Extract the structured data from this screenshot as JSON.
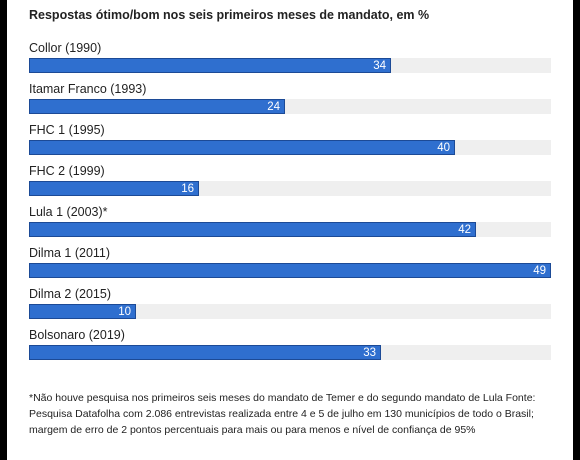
{
  "chart_data": {
    "type": "bar",
    "orientation": "horizontal",
    "title": "Respostas ótimo/bom nos seis primeiros meses de mandato, em %",
    "categories": [
      "Collor (1990)",
      "Itamar Franco (1993)",
      "FHC 1 (1995)",
      "FHC 2 (1999)",
      "Lula 1 (2003)*",
      "Dilma 1 (2011)",
      "Dilma 2 (2015)",
      "Bolsonaro (2019)"
    ],
    "values": [
      34,
      24,
      40,
      16,
      42,
      49,
      10,
      33
    ],
    "xlim": [
      0,
      49
    ],
    "grid": false,
    "colors": {
      "bar": "#2f6fcf",
      "track": "#efefef",
      "label": "#ffffff"
    }
  },
  "footnote": {
    "line1": "*Não houve pesquisa nos primeiros seis meses do mandato de Temer e do segundo mandato de Lula Fonte:",
    "line2": "Pesquisa Datafolha com 2.086 entrevistas realizada entre 4 e 5 de julho em 130 municípios de todo o Brasil;",
    "line3": "margem de erro de 2 pontos percentuais para mais ou para menos e nível de confiança de 95%"
  }
}
